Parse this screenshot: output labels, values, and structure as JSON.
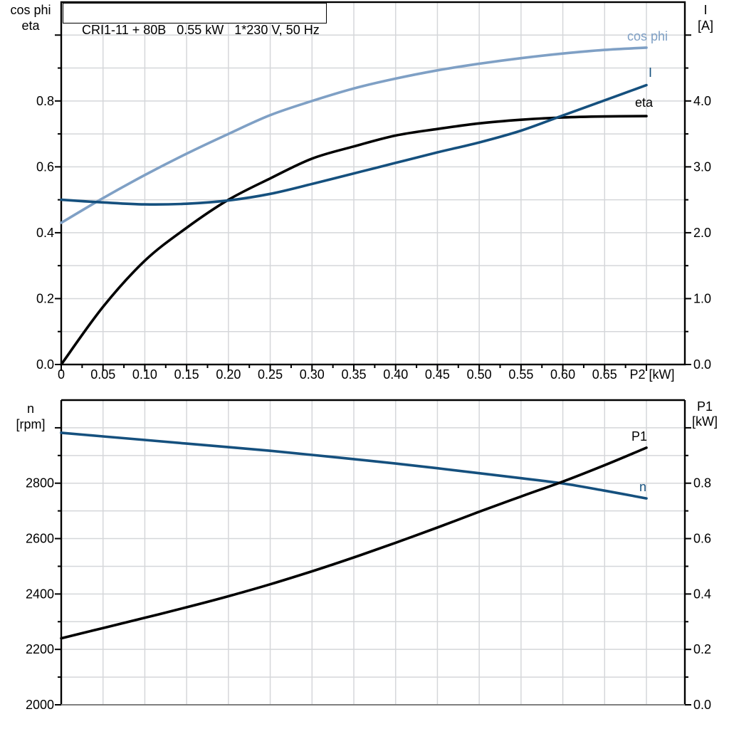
{
  "title": "CRI1-11 + 80B   0.55 kW   1*230 V, 50 Hz",
  "colors": {
    "cos_phi": "#7FA0C5",
    "current": "#15507E",
    "eta": "#000000",
    "n": "#15507E",
    "p1": "#000000",
    "grid": "#D5D7DA",
    "axis": "#000000",
    "bottom_baseline": "#7F7F7F"
  },
  "top_panel": {
    "left_header_line1": "cos phi",
    "left_header_line2": "eta",
    "right_header_line1": "I",
    "right_header_line2": "[A]",
    "x_axis_label": "P2 [kW]",
    "x_tick_labels": [
      "0",
      "0.05",
      "0.10",
      "0.15",
      "0.20",
      "0.25",
      "0.30",
      "0.35",
      "0.40",
      "0.45",
      "0.50",
      "0.55",
      "0.60",
      "0.65"
    ],
    "left_tick_labels": [
      "0.0",
      "0.2",
      "0.4",
      "0.6",
      "0.8"
    ],
    "right_tick_labels": [
      "0.0",
      "1.0",
      "2.0",
      "3.0",
      "4.0"
    ],
    "curve_labels": {
      "cos_phi": "cos phi",
      "current": "I",
      "eta": "eta"
    }
  },
  "bottom_panel": {
    "left_header_line1": "n",
    "left_header_line2": "[rpm]",
    "right_header_line1": "P1",
    "right_header_line2": "[kW]",
    "left_tick_labels": [
      "2000",
      "2200",
      "2400",
      "2600",
      "2800"
    ],
    "right_tick_labels": [
      "0.0",
      "0.2",
      "0.4",
      "0.6",
      "0.8"
    ],
    "curve_labels": {
      "p1": "P1",
      "n": "n"
    }
  },
  "chart_data": [
    {
      "type": "line",
      "title": "CRI1-11 + 80B  0.55 kW  1*230 V, 50 Hz",
      "xlabel": "P2 [kW]",
      "x": [
        0,
        0.05,
        0.1,
        0.15,
        0.2,
        0.25,
        0.3,
        0.35,
        0.4,
        0.45,
        0.5,
        0.55,
        0.6,
        0.65,
        0.7
      ],
      "left_axis": {
        "label": "cos phi / eta",
        "range": [
          0,
          1.1
        ],
        "ticks": [
          0.0,
          0.2,
          0.4,
          0.6,
          0.8
        ]
      },
      "right_axis": {
        "label": "I [A]",
        "range": [
          0,
          5.5
        ],
        "ticks": [
          0.0,
          1.0,
          2.0,
          3.0,
          4.0
        ]
      },
      "grid": true,
      "legend_position": "inline-labels",
      "series": [
        {
          "name": "cos phi",
          "axis": "left",
          "color": "#7FA0C5",
          "values": [
            0.43,
            0.505,
            0.575,
            0.64,
            0.7,
            0.757,
            0.8,
            0.838,
            0.868,
            0.893,
            0.913,
            0.93,
            0.944,
            0.955,
            0.962
          ]
        },
        {
          "name": "I",
          "axis": "right",
          "color": "#15507E",
          "values": [
            2.5,
            2.46,
            2.43,
            2.44,
            2.49,
            2.59,
            2.74,
            2.9,
            3.06,
            3.22,
            3.37,
            3.55,
            3.78,
            4.01,
            4.24
          ]
        },
        {
          "name": "eta",
          "axis": "left",
          "color": "#000000",
          "values": [
            0.0,
            0.175,
            0.315,
            0.415,
            0.5,
            0.565,
            0.625,
            0.662,
            0.695,
            0.715,
            0.732,
            0.743,
            0.75,
            0.753,
            0.754
          ]
        }
      ]
    },
    {
      "type": "line",
      "title": "",
      "xlabel": "",
      "x": [
        0,
        0.05,
        0.1,
        0.15,
        0.2,
        0.25,
        0.3,
        0.35,
        0.4,
        0.45,
        0.5,
        0.55,
        0.6,
        0.65,
        0.7
      ],
      "left_axis": {
        "label": "n [rpm]",
        "range": [
          2000,
          3100
        ],
        "ticks": [
          2000,
          2200,
          2400,
          2600,
          2800
        ]
      },
      "right_axis": {
        "label": "P1 [kW]",
        "range": [
          0,
          1.1
        ],
        "ticks": [
          0.0,
          0.2,
          0.4,
          0.6,
          0.8
        ]
      },
      "grid": true,
      "legend_position": "inline-labels",
      "series": [
        {
          "name": "n",
          "axis": "left",
          "color": "#15507E",
          "values": [
            2982,
            2969,
            2956,
            2943,
            2930,
            2917,
            2902,
            2887,
            2871,
            2854,
            2836,
            2818,
            2799,
            2773,
            2745
          ]
        },
        {
          "name": "P1",
          "axis": "right",
          "color": "#000000",
          "values": [
            0.24,
            0.277,
            0.314,
            0.352,
            0.392,
            0.435,
            0.482,
            0.532,
            0.585,
            0.64,
            0.697,
            0.752,
            0.806,
            0.865,
            0.928
          ]
        }
      ]
    }
  ]
}
